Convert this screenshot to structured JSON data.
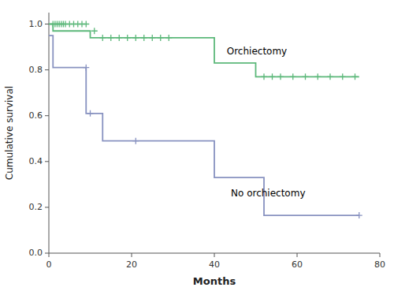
{
  "chart_data": {
    "type": "line",
    "xlabel": "Months",
    "ylabel": "Cumulative survival",
    "xlim": [
      0,
      80
    ],
    "ylim": [
      0.0,
      1.05
    ],
    "xticks": [
      0,
      20,
      40,
      60,
      80
    ],
    "yticks": [
      {
        "value": 0.0,
        "label": "0.0"
      },
      0.2,
      0.4,
      0.6,
      0.8,
      {
        "value": 1.0,
        "label": "1.0"
      }
    ],
    "grid": false,
    "series": [
      {
        "type": "line",
        "color": "#5cb87a",
        "x": [
          0,
          1,
          1,
          10,
          10,
          40,
          40,
          50,
          50,
          75
        ],
        "values": [
          1.0,
          1.0,
          0.97,
          0.97,
          0.94,
          0.94,
          0.83,
          0.83,
          0.77,
          0.77
        ]
      },
      {
        "type": "line",
        "color": "#8892c0",
        "x": [
          0,
          1,
          1,
          9,
          9,
          13,
          13,
          21,
          21,
          40,
          40,
          44,
          44,
          52,
          52,
          75
        ],
        "values": [
          0.95,
          0.95,
          0.81,
          0.81,
          0.61,
          0.61,
          0.49,
          0.49,
          0.49,
          0.49,
          0.33,
          0.33,
          0.33,
          0.33,
          0.165,
          0.165
        ]
      },
      {
        "type": "scatter",
        "marker": "plus",
        "color": "#5cb87a",
        "x": [
          1,
          1.5,
          2,
          2.5,
          3,
          3.5,
          4,
          5,
          6,
          7,
          8,
          9,
          11,
          13,
          15,
          17,
          19,
          21,
          23,
          25,
          27,
          29,
          52,
          54,
          56,
          59,
          62,
          65,
          68,
          71,
          74
        ],
        "values": [
          1.0,
          1.0,
          1.0,
          1.0,
          1.0,
          1.0,
          1.0,
          1.0,
          1.0,
          1.0,
          1.0,
          1.0,
          0.97,
          0.94,
          0.94,
          0.94,
          0.94,
          0.94,
          0.94,
          0.94,
          0.94,
          0.94,
          0.77,
          0.77,
          0.77,
          0.77,
          0.77,
          0.77,
          0.77,
          0.77,
          0.77
        ]
      },
      {
        "type": "scatter",
        "marker": "plus",
        "color": "#8892c0",
        "x": [
          9,
          10,
          21,
          75
        ],
        "values": [
          0.81,
          0.61,
          0.49,
          0.165
        ]
      }
    ],
    "annotations": [
      {
        "text": "Orchiectomy",
        "x": 43,
        "y": 0.88
      },
      {
        "text": "No orchiectomy",
        "x": 44,
        "y": 0.26
      }
    ]
  }
}
